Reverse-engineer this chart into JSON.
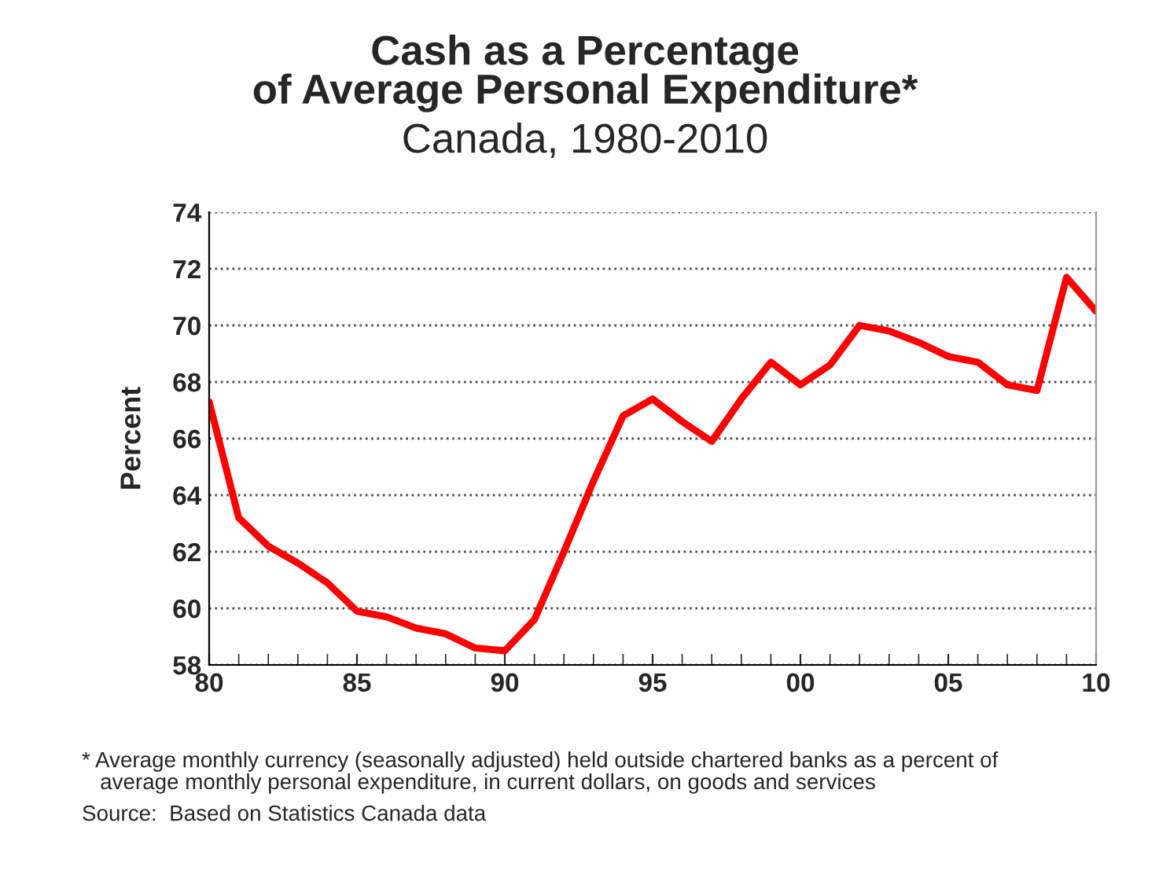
{
  "chart_data": {
    "type": "line",
    "title": "Cash as a Percentage\nof Average Personal Expenditure*",
    "subtitle": "Canada, 1980-2010",
    "ylabel": "Percent",
    "x": [
      1980,
      1981,
      1982,
      1983,
      1984,
      1985,
      1986,
      1987,
      1988,
      1989,
      1990,
      1991,
      1992,
      1993,
      1994,
      1995,
      1996,
      1997,
      1998,
      1999,
      2000,
      2001,
      2002,
      2003,
      2004,
      2005,
      2006,
      2007,
      2008,
      2009,
      2010
    ],
    "series": [
      {
        "color": "#ff0000",
        "values": [
          67.3,
          63.2,
          62.2,
          61.6,
          60.9,
          59.9,
          59.7,
          59.3,
          59.1,
          58.6,
          58.5,
          59.6,
          62.0,
          64.5,
          66.8,
          67.4,
          66.6,
          65.9,
          67.4,
          68.7,
          67.9,
          68.6,
          70.0,
          69.8,
          69.4,
          68.9,
          68.7,
          67.9,
          67.7,
          71.7,
          70.5
        ]
      }
    ],
    "xlim": [
      1980,
      2010
    ],
    "xticks": [
      {
        "value": 1980,
        "label": "80"
      },
      {
        "value": 1985,
        "label": "85"
      },
      {
        "value": 1990,
        "label": "90"
      },
      {
        "value": 1995,
        "label": "95"
      },
      {
        "value": 2000,
        "label": "00"
      },
      {
        "value": 2005,
        "label": "05"
      },
      {
        "value": 2010,
        "label": "10"
      }
    ],
    "ylim": [
      58,
      74
    ],
    "yticks": [
      58,
      60,
      62,
      64,
      66,
      68,
      70,
      72,
      74
    ],
    "grid": "y",
    "line_style": "solid",
    "marker": "none",
    "annotations": [
      "* Average monthly currency (seasonally adjusted) held outside chartered banks as a percent of\n   average monthly personal expenditure, in current dollars, on goods and services",
      "Source:  Based on Statistics Canada data"
    ]
  }
}
